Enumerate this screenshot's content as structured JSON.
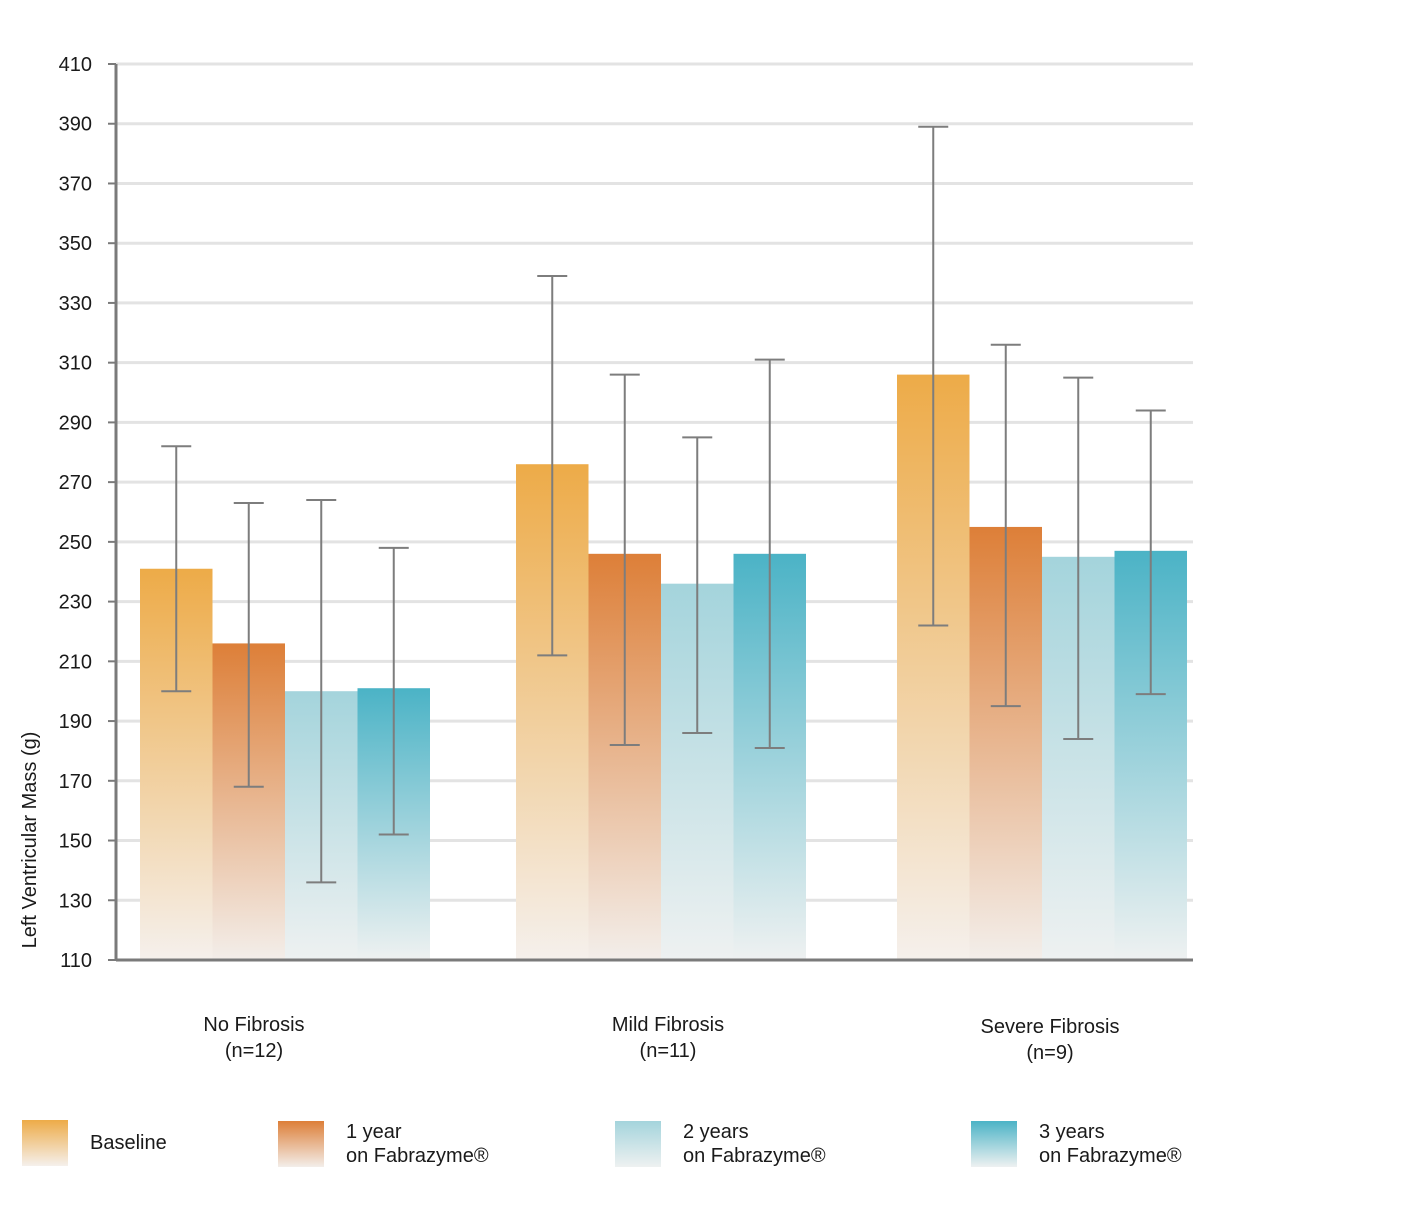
{
  "chart_data": {
    "type": "bar",
    "ylabel": "Left Ventricular Mass (g)",
    "xlabel": "",
    "ylim": [
      110,
      410
    ],
    "yticks": [
      110,
      130,
      150,
      170,
      190,
      210,
      230,
      250,
      270,
      290,
      310,
      330,
      350,
      370,
      390,
      410
    ],
    "grid": true,
    "legend_position": "bottom",
    "categories": [
      {
        "name": "No Fibrosis",
        "n": "(n=12)"
      },
      {
        "name": "Mild Fibrosis",
        "n": "(n=11)"
      },
      {
        "name": "Severe Fibrosis",
        "n": "(n=9)"
      }
    ],
    "series": [
      {
        "name": "Baseline",
        "name_line2": "",
        "color_top": "#EDAB48",
        "color_bottom": "#F5F0EC",
        "values": [
          241,
          276,
          306
        ],
        "err_low": [
          200,
          212,
          222
        ],
        "err_high": [
          282,
          339,
          389
        ]
      },
      {
        "name": "1 year",
        "name_line2": "on Fabrazyme®",
        "color_top": "#DD7F38",
        "color_bottom": "#F3EEEA",
        "values": [
          216,
          246,
          255
        ],
        "err_low": [
          168,
          182,
          195
        ],
        "err_high": [
          263,
          306,
          316
        ]
      },
      {
        "name": "2 years",
        "name_line2": "on Fabrazyme®",
        "color_top": "#A4D4DC",
        "color_bottom": "#EEF1F1",
        "values": [
          200,
          236,
          245
        ],
        "err_low": [
          136,
          186,
          184
        ],
        "err_high": [
          264,
          285,
          305
        ]
      },
      {
        "name": "3 years",
        "name_line2": "on Fabrazyme®",
        "color_top": "#4BB3C6",
        "color_bottom": "#EEF1F1",
        "values": [
          201,
          246,
          247
        ],
        "err_low": [
          152,
          181,
          199
        ],
        "err_high": [
          248,
          311,
          294
        ]
      }
    ]
  }
}
